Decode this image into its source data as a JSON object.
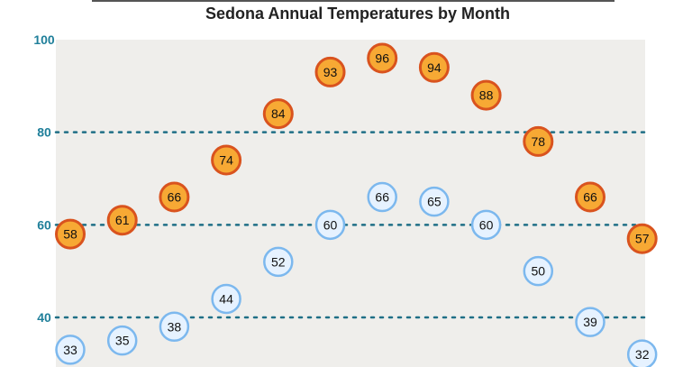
{
  "chart_data": {
    "type": "scatter",
    "title": "Sedona Annual Temperatures by Month",
    "xlabel": "",
    "ylabel": "",
    "categories": [
      "",
      "",
      "",
      "",
      "",
      "",
      "",
      "",
      "",
      "",
      "",
      ""
    ],
    "ylim": [
      30,
      100
    ],
    "yticks": [
      40,
      60,
      80,
      100
    ],
    "grid": true,
    "series": [
      {
        "values": [
          58,
          61,
          66,
          74,
          84,
          93,
          96,
          94,
          88,
          78,
          66,
          57
        ],
        "fill": "#f7a934",
        "stroke": "#d9531e"
      },
      {
        "values": [
          33,
          35,
          38,
          44,
          52,
          60,
          66,
          65,
          60,
          50,
          39,
          32
        ],
        "fill": "#e6f2ff",
        "stroke": "#7cb8ee"
      }
    ]
  },
  "colors": {
    "plot_background": "#efeeeb",
    "gridline": "#1f6f86",
    "tick_label": "#1f7f9a"
  }
}
